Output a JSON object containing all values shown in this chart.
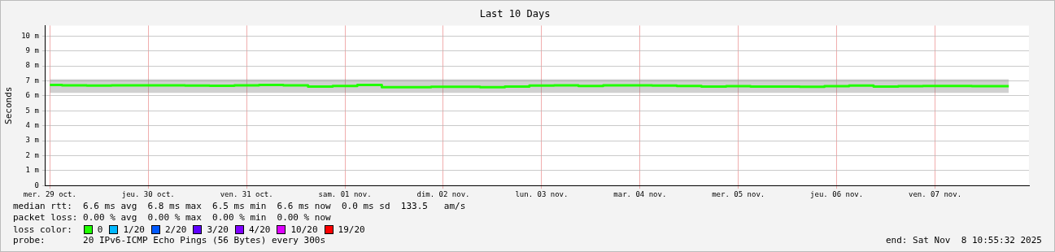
{
  "chart_data": {
    "type": "step",
    "title": "Last 10 Days",
    "ylabel": "Seconds",
    "legend_title": "loss color:",
    "legend": "bottom",
    "grid": true,
    "line_style": "solid",
    "marker": "none",
    "x": [
      "2025-10-29T12:00",
      "2025-10-29T18:00",
      "2025-10-30T00:00",
      "2025-10-30T06:00",
      "2025-10-30T12:00",
      "2025-10-30T18:00",
      "2025-10-31T00:00",
      "2025-10-31T06:00",
      "2025-10-31T12:00",
      "2025-10-31T18:00",
      "2025-11-01T00:00",
      "2025-11-01T06:00",
      "2025-11-01T12:00",
      "2025-11-01T18:00",
      "2025-11-02T00:00",
      "2025-11-02T06:00",
      "2025-11-02T12:00",
      "2025-11-02T18:00",
      "2025-11-03T00:00",
      "2025-11-03T06:00",
      "2025-11-03T12:00",
      "2025-11-03T18:00",
      "2025-11-04T00:00",
      "2025-11-04T06:00",
      "2025-11-04T12:00",
      "2025-11-04T18:00",
      "2025-11-05T00:00",
      "2025-11-05T06:00",
      "2025-11-05T12:00",
      "2025-11-05T18:00",
      "2025-11-06T00:00",
      "2025-11-06T06:00",
      "2025-11-06T12:00",
      "2025-11-06T18:00",
      "2025-11-07T00:00",
      "2025-11-07T06:00",
      "2025-11-07T12:00",
      "2025-11-07T18:00",
      "2025-11-08T00:00",
      "2025-11-08T06:00"
    ],
    "xlim": [
      "2025-10-29T10:55",
      "2025-11-08T10:55"
    ],
    "xticks": [
      {
        "value": "2025-10-29T12:00",
        "label": "mer. 29 oct."
      },
      {
        "value": "2025-10-30T12:00",
        "label": "jeu. 30 oct."
      },
      {
        "value": "2025-10-31T12:00",
        "label": "ven. 31 oct."
      },
      {
        "value": "2025-11-01T12:00",
        "label": "sam. 01 nov."
      },
      {
        "value": "2025-11-02T12:00",
        "label": "dim. 02 nov."
      },
      {
        "value": "2025-11-03T12:00",
        "label": "lun. 03 nov."
      },
      {
        "value": "2025-11-04T12:00",
        "label": "mar. 04 nov."
      },
      {
        "value": "2025-11-05T12:00",
        "label": "mer. 05 nov."
      },
      {
        "value": "2025-11-06T12:00",
        "label": "jeu. 06 nov."
      },
      {
        "value": "2025-11-07T12:00",
        "label": "ven. 07 nov."
      }
    ],
    "ylim": [
      0,
      10.7
    ],
    "yticks": [
      {
        "value": 0,
        "label": "0"
      },
      {
        "value": 1,
        "label": "1 m"
      },
      {
        "value": 2,
        "label": "2 m"
      },
      {
        "value": 3,
        "label": "3 m"
      },
      {
        "value": 4,
        "label": "4 m"
      },
      {
        "value": 5,
        "label": "5 m"
      },
      {
        "value": 6,
        "label": "6 m"
      },
      {
        "value": 7,
        "label": "7 m"
      },
      {
        "value": 8,
        "label": "8 m"
      },
      {
        "value": 9,
        "label": "9 m"
      },
      {
        "value": 10,
        "label": "10 m"
      }
    ],
    "series": [
      {
        "name": "0",
        "color": "#20ff00",
        "values": [
          6.72,
          6.7,
          6.68,
          6.7,
          6.7,
          6.7,
          6.69,
          6.67,
          6.7,
          6.72,
          6.7,
          6.62,
          6.66,
          6.72,
          6.58,
          6.58,
          6.6,
          6.6,
          6.58,
          6.62,
          6.68,
          6.7,
          6.66,
          6.7,
          6.7,
          6.68,
          6.66,
          6.62,
          6.64,
          6.62,
          6.62,
          6.6,
          6.64,
          6.68,
          6.62,
          6.64,
          6.66,
          6.66,
          6.64,
          6.64
        ],
        "lower": [
          6.2,
          6.2,
          6.2,
          6.2,
          6.2,
          6.2,
          6.2,
          6.2,
          6.2,
          6.2,
          6.2,
          6.2,
          6.2,
          6.2,
          6.2,
          6.2,
          6.2,
          6.2,
          6.2,
          6.2,
          6.2,
          6.2,
          6.2,
          6.2,
          6.2,
          6.2,
          6.2,
          6.2,
          6.2,
          6.2,
          6.2,
          6.2,
          6.2,
          6.2,
          6.2,
          6.2,
          6.2,
          6.2,
          6.2,
          6.2
        ],
        "upper": [
          7.1,
          7.1,
          7.1,
          7.1,
          7.1,
          7.1,
          7.1,
          7.1,
          7.1,
          7.1,
          7.1,
          7.1,
          7.1,
          7.1,
          7.1,
          7.1,
          7.1,
          7.1,
          7.1,
          7.1,
          7.1,
          7.1,
          7.1,
          7.1,
          7.1,
          7.1,
          7.1,
          7.1,
          7.1,
          7.1,
          7.1,
          7.1,
          7.1,
          7.1,
          7.1,
          7.1,
          7.1,
          7.1,
          7.1,
          7.1
        ]
      },
      {
        "name": "1/20",
        "color": "#00b8ff",
        "values": [
          null,
          null,
          null,
          null,
          null,
          null,
          null,
          null,
          null,
          null,
          null,
          null,
          null,
          null,
          null,
          null,
          null,
          null,
          null,
          null,
          null,
          null,
          null,
          null,
          null,
          null,
          null,
          null,
          null,
          null,
          null,
          null,
          null,
          null,
          null,
          null,
          null,
          null,
          null,
          null
        ]
      },
      {
        "name": "2/20",
        "color": "#0059ff",
        "values": [
          null,
          null,
          null,
          null,
          null,
          null,
          null,
          null,
          null,
          null,
          null,
          null,
          null,
          null,
          null,
          null,
          null,
          null,
          null,
          null,
          null,
          null,
          null,
          null,
          null,
          null,
          null,
          null,
          null,
          null,
          null,
          null,
          null,
          null,
          null,
          null,
          null,
          null,
          null,
          null
        ]
      },
      {
        "name": "3/20",
        "color": "#5e00ff",
        "values": [
          null,
          null,
          null,
          null,
          null,
          null,
          null,
          null,
          null,
          null,
          null,
          null,
          null,
          null,
          null,
          null,
          null,
          null,
          null,
          null,
          null,
          null,
          null,
          null,
          null,
          null,
          null,
          null,
          null,
          null,
          null,
          null,
          null,
          null,
          null,
          null,
          null,
          null,
          null,
          null
        ]
      },
      {
        "name": "4/20",
        "color": "#7e00ff",
        "values": [
          null,
          null,
          null,
          null,
          null,
          null,
          null,
          null,
          null,
          null,
          null,
          null,
          null,
          null,
          null,
          null,
          null,
          null,
          null,
          null,
          null,
          null,
          null,
          null,
          null,
          null,
          null,
          null,
          null,
          null,
          null,
          null,
          null,
          null,
          null,
          null,
          null,
          null,
          null,
          null
        ]
      },
      {
        "name": "10/20",
        "color": "#dd00ff",
        "values": [
          null,
          null,
          null,
          null,
          null,
          null,
          null,
          null,
          null,
          null,
          null,
          null,
          null,
          null,
          null,
          null,
          null,
          null,
          null,
          null,
          null,
          null,
          null,
          null,
          null,
          null,
          null,
          null,
          null,
          null,
          null,
          null,
          null,
          null,
          null,
          null,
          null,
          null,
          null,
          null
        ]
      },
      {
        "name": "19/20",
        "color": "#ff0000",
        "values": [
          null,
          null,
          null,
          null,
          null,
          null,
          null,
          null,
          null,
          null,
          null,
          null,
          null,
          null,
          null,
          null,
          null,
          null,
          null,
          null,
          null,
          null,
          null,
          null,
          null,
          null,
          null,
          null,
          null,
          null,
          null,
          null,
          null,
          null,
          null,
          null,
          null,
          null,
          null,
          null
        ]
      }
    ],
    "annotations": [
      "median rtt:  6.6 ms avg  6.8 ms max  6.5 ms min  6.6 ms now  0.0 ms sd  133.5   am/s",
      "packet loss: 0.00 % avg  0.00 % max  0.00 % min  0.00 % now",
      "probe:       20 IPv6-ICMP Echo Pings (56 Bytes) every 300s",
      "end: Sat Nov  8 10:55:32 2025"
    ]
  }
}
